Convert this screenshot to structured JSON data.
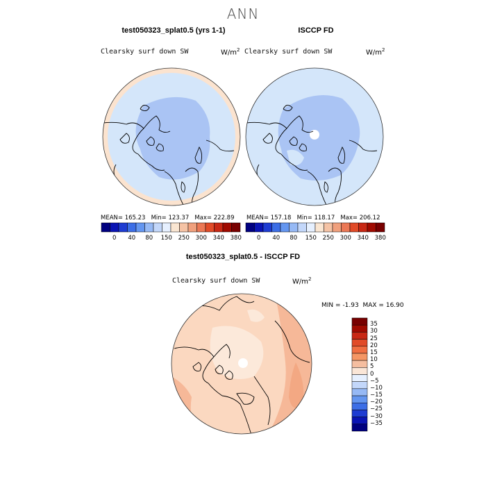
{
  "page": {
    "title": "ANN"
  },
  "panels": [
    {
      "title": "test050323_splat0.5 (yrs 1-1)",
      "field": "Clearsky surf down SW",
      "units_base": "W/m",
      "units_exp": "2",
      "stats": {
        "mean_label": "MEAN=",
        "mean": "165.23",
        "min_label": "Min=",
        "min": "123.37",
        "max_label": "Max=",
        "max": "222.89"
      }
    },
    {
      "title": "ISCCP FD",
      "field": "Clearsky surf down SW",
      "units_base": "W/m",
      "units_exp": "2",
      "stats": {
        "mean_label": "MEAN=",
        "mean": "157.18",
        "min_label": "Min=",
        "min": "118.17",
        "max_label": "Max=",
        "max": "206.12"
      }
    }
  ],
  "colorbar_top": {
    "labels": [
      "0",
      "40",
      "80",
      "150",
      "250",
      "300",
      "340",
      "380"
    ],
    "colors": [
      "#000080",
      "#0a14b4",
      "#1e3cd2",
      "#3c6ee6",
      "#6496f0",
      "#96b9f5",
      "#c3d7fa",
      "#e6f0ff",
      "#fae6d2",
      "#f5c3a5",
      "#f0a07d",
      "#eb7855",
      "#e14b28",
      "#c82814",
      "#a00a00",
      "#780000"
    ]
  },
  "diff": {
    "title": "test050323_splat0.5 - ISCCP FD",
    "field": "Clearsky surf down SW",
    "units_base": "W/m",
    "units_exp": "2",
    "stats": {
      "min_label": "MIN =",
      "min": "-1.93",
      "max_label": "MAX =",
      "max": "16.90"
    },
    "colorbar": {
      "labels": [
        "35",
        "30",
        "25",
        "20",
        "15",
        "10",
        "5",
        "0",
        "−5",
        "−10",
        "−15",
        "−20",
        "−25",
        "−30",
        "−35"
      ],
      "colors": [
        "#780000",
        "#a00a00",
        "#c82814",
        "#e14b28",
        "#f06e41",
        "#f59664",
        "#f5bea0",
        "#fae6d7",
        "#e6f0ff",
        "#c3d7fa",
        "#96b9f5",
        "#6496f0",
        "#3c6ee6",
        "#1e3cd2",
        "#0a14b4",
        "#000080"
      ]
    }
  },
  "colors": {
    "panel_fill_outer": "#d4e6fa",
    "panel_fill_inner": "#aac4f4",
    "panel_edge_peach": "#fbe3cf",
    "diff_fill_light": "#fbd8c0",
    "diff_fill_mid": "#f6b898",
    "diff_fill_darker": "#f3a883",
    "diff_fill_pale": "#fce9da"
  }
}
